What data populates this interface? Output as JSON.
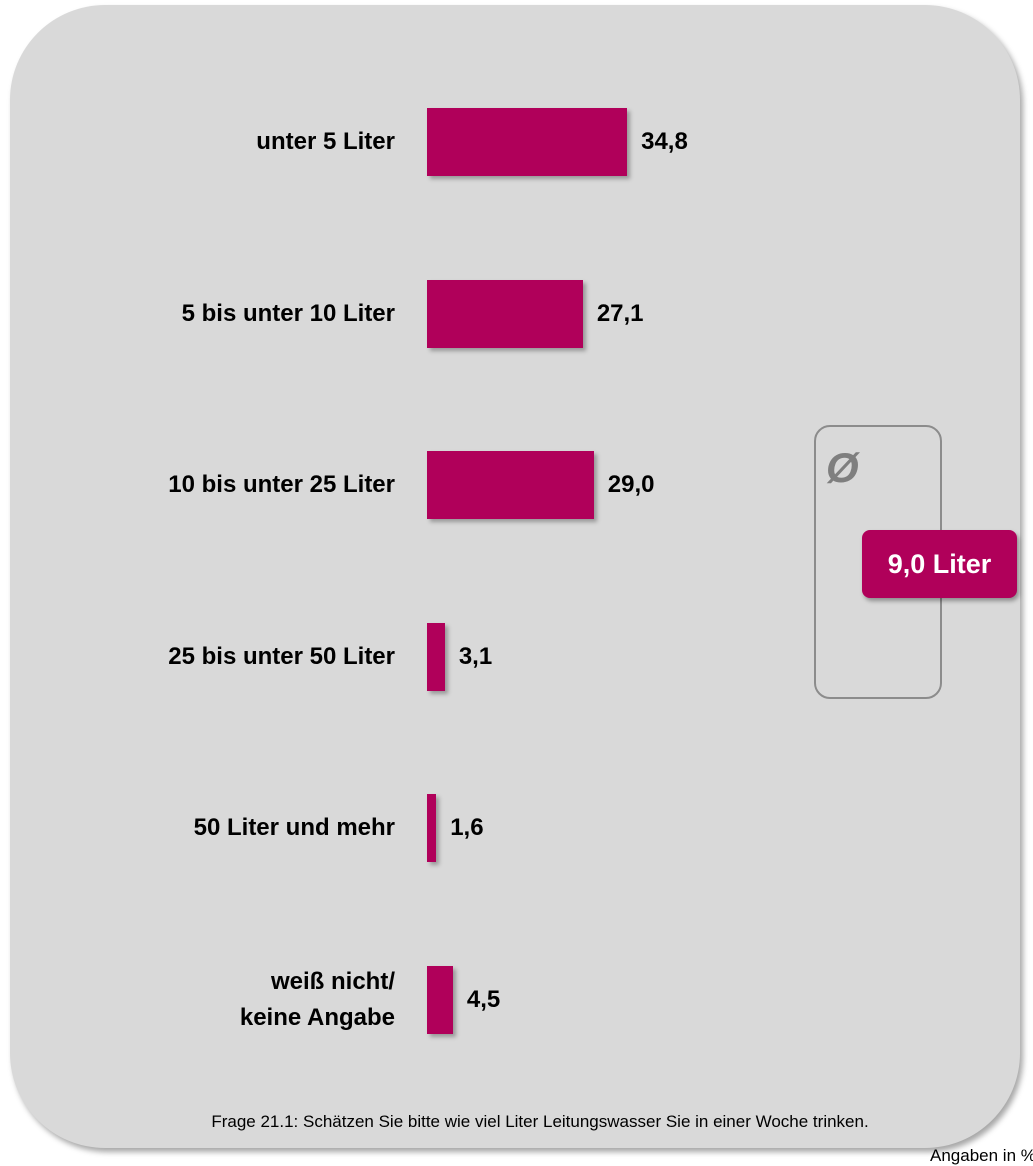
{
  "chart_data": {
    "type": "hbar",
    "categories": [
      "unter 5 Liter",
      "5 bis unter 10 Liter",
      "10 bis unter 25 Liter",
      "25 bis unter 50 Liter",
      "50 Liter und mehr",
      "weiß nicht/\nkeine Angabe"
    ],
    "values": [
      34.8,
      27.1,
      29.0,
      3.1,
      1.6,
      4.5
    ],
    "value_labels": [
      "34,8",
      "27,1",
      "29,0",
      "3,1",
      "1,6",
      "4,5"
    ],
    "color": "#b0005a",
    "xlim": [
      0,
      40
    ],
    "annotations": [
      "Ø",
      "9,0 Liter"
    ],
    "subtitle": "Frage  21.1: Schätzen Sie bitte wie viel Liter Leitungswasser Sie in einer Woche trinken.",
    "unit_label": "Angaben in %"
  }
}
